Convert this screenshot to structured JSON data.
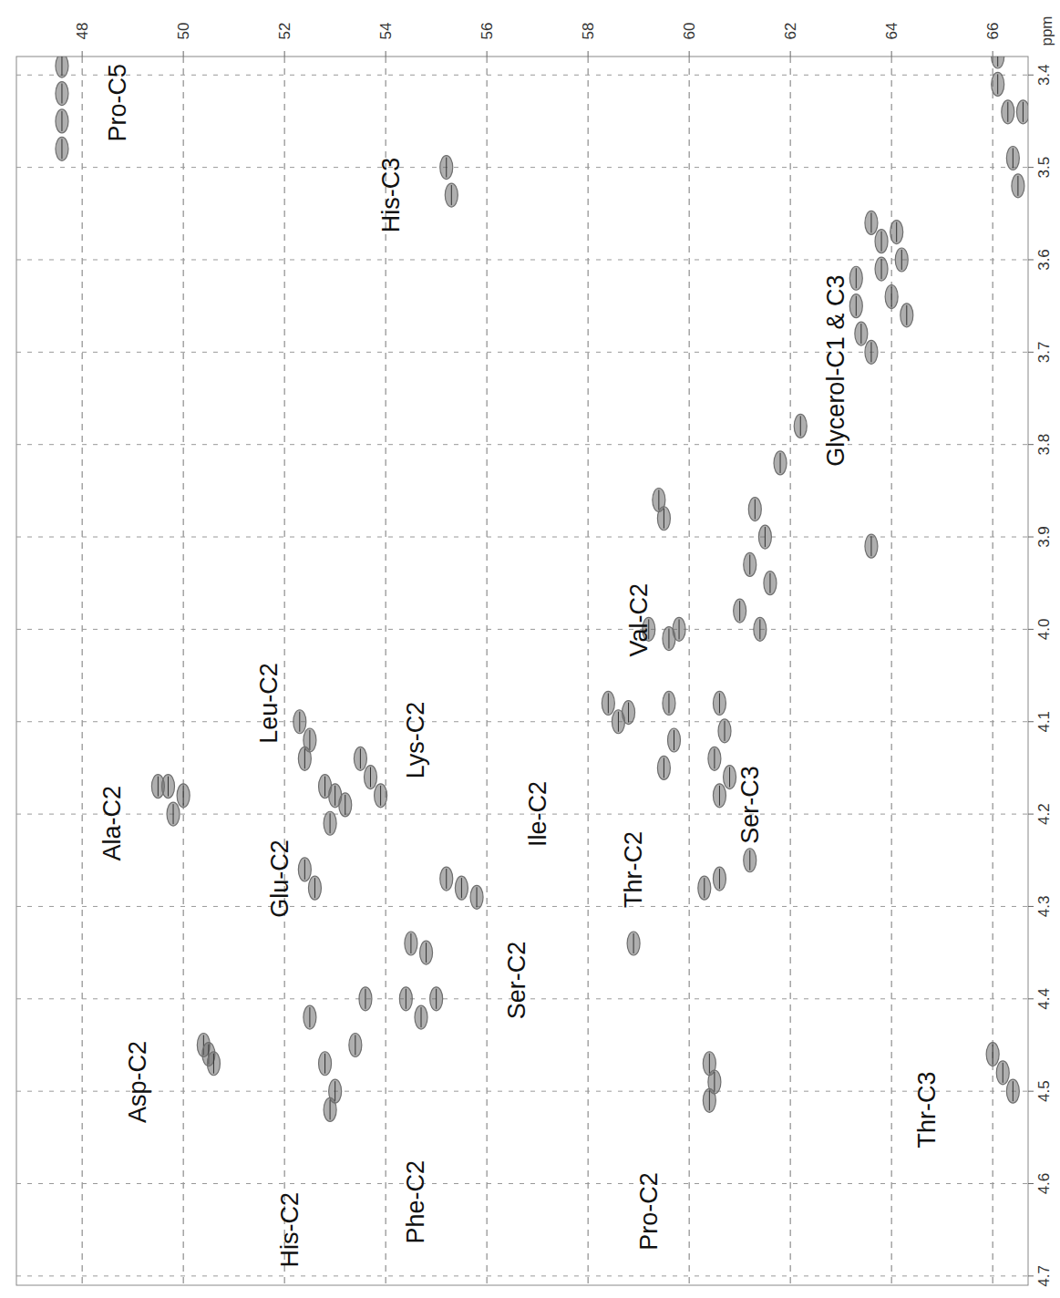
{
  "chart_data": {
    "type": "scatter",
    "xlabel": "ppm",
    "xlim": [
      46.7,
      66.7
    ],
    "ylim": [
      4.71,
      3.38
    ],
    "xticks": [
      48,
      50,
      52,
      54,
      56,
      58,
      60,
      62,
      64,
      66
    ],
    "yticks": [
      3.4,
      3.5,
      3.6,
      3.7,
      3.8,
      3.9,
      {
        "value": 4,
        "label": "4.0"
      },
      4.1,
      4.2,
      4.3,
      4.4,
      4.5,
      4.6,
      4.7
    ],
    "grid": true,
    "color": "#6e6e6e",
    "x": [
      47.6,
      47.6,
      47.6,
      47.6,
      55.2,
      55.3,
      66.1,
      66.1,
      66.3,
      66.6,
      66.4,
      66.5,
      63.3,
      63.3,
      63.4,
      63.6,
      63.8,
      63.8,
      64.0,
      64.1,
      64.2,
      64.3,
      63.6,
      63.6,
      61.3,
      61.5,
      61.2,
      61.6,
      61.0,
      61.4,
      61.8,
      62.2,
      59.4,
      59.5,
      59.2,
      59.6,
      59.8,
      58.4,
      58.6,
      58.8,
      59.6,
      59.7,
      59.5,
      60.6,
      60.7,
      60.5,
      60.8,
      60.6,
      60.4,
      60.5,
      60.4,
      60.3,
      60.6,
      58.9,
      61.2,
      49.5,
      49.7,
      50.0,
      49.8,
      52.3,
      52.5,
      52.4,
      52.8,
      53.0,
      53.2,
      52.9,
      53.5,
      53.7,
      53.9,
      52.4,
      52.6,
      55.2,
      55.5,
      55.8,
      54.5,
      54.8,
      54.4,
      54.7,
      55.0,
      50.4,
      50.5,
      50.6,
      52.5,
      52.8,
      53.0,
      53.4,
      52.9,
      53.6,
      66.0,
      66.2,
      66.4
    ],
    "values": [
      3.39,
      3.42,
      3.45,
      3.48,
      3.5,
      3.53,
      3.38,
      3.41,
      3.44,
      3.44,
      3.49,
      3.52,
      3.62,
      3.65,
      3.68,
      3.7,
      3.58,
      3.61,
      3.64,
      3.57,
      3.6,
      3.66,
      3.56,
      3.91,
      3.87,
      3.9,
      3.93,
      3.95,
      3.98,
      4.0,
      3.82,
      3.78,
      3.86,
      3.88,
      4.0,
      4.01,
      4.0,
      4.08,
      4.1,
      4.09,
      4.08,
      4.12,
      4.15,
      4.08,
      4.11,
      4.14,
      4.16,
      4.18,
      4.47,
      4.49,
      4.51,
      4.28,
      4.27,
      4.34,
      4.25,
      4.17,
      4.17,
      4.18,
      4.2,
      4.1,
      4.12,
      4.14,
      4.17,
      4.18,
      4.19,
      4.21,
      4.14,
      4.16,
      4.18,
      4.26,
      4.28,
      4.27,
      4.28,
      4.29,
      4.34,
      4.35,
      4.4,
      4.42,
      4.4,
      4.45,
      4.46,
      4.47,
      4.42,
      4.47,
      4.5,
      4.45,
      4.52,
      4.4,
      4.46,
      4.48,
      4.5
    ],
    "annotations": [
      {
        "text": "Pro-C5",
        "x": 48.7,
        "y": 3.43
      },
      {
        "text": "His-C3",
        "x": 54.1,
        "y": 3.53
      },
      {
        "text": "Glycerol-C1 & C3",
        "x": 62.9,
        "y": 3.72
      },
      {
        "text": "Val-C2",
        "x": 59.0,
        "y": 3.99
      },
      {
        "text": "Leu-C2",
        "x": 51.7,
        "y": 4.08
      },
      {
        "text": "Lys-C2",
        "x": 54.6,
        "y": 4.12
      },
      {
        "text": "Ser-C3",
        "x": 61.2,
        "y": 4.19
      },
      {
        "text": "Ile-C2",
        "x": 57.0,
        "y": 4.2
      },
      {
        "text": "Thr-C2",
        "x": 58.9,
        "y": 4.26
      },
      {
        "text": "Ala-C2",
        "x": 48.6,
        "y": 4.21
      },
      {
        "text": "Glu-C2",
        "x": 51.9,
        "y": 4.27
      },
      {
        "text": "Ser-C2",
        "x": 56.6,
        "y": 4.38
      },
      {
        "text": "Asp-C2",
        "x": 49.1,
        "y": 4.49
      },
      {
        "text": "Thr-C3",
        "x": 64.7,
        "y": 4.52
      },
      {
        "text": "Pro-C2",
        "x": 59.2,
        "y": 4.63
      },
      {
        "text": "Phe-C2",
        "x": 54.6,
        "y": 4.62
      },
      {
        "text": "His-C2",
        "x": 52.1,
        "y": 4.65
      }
    ]
  }
}
